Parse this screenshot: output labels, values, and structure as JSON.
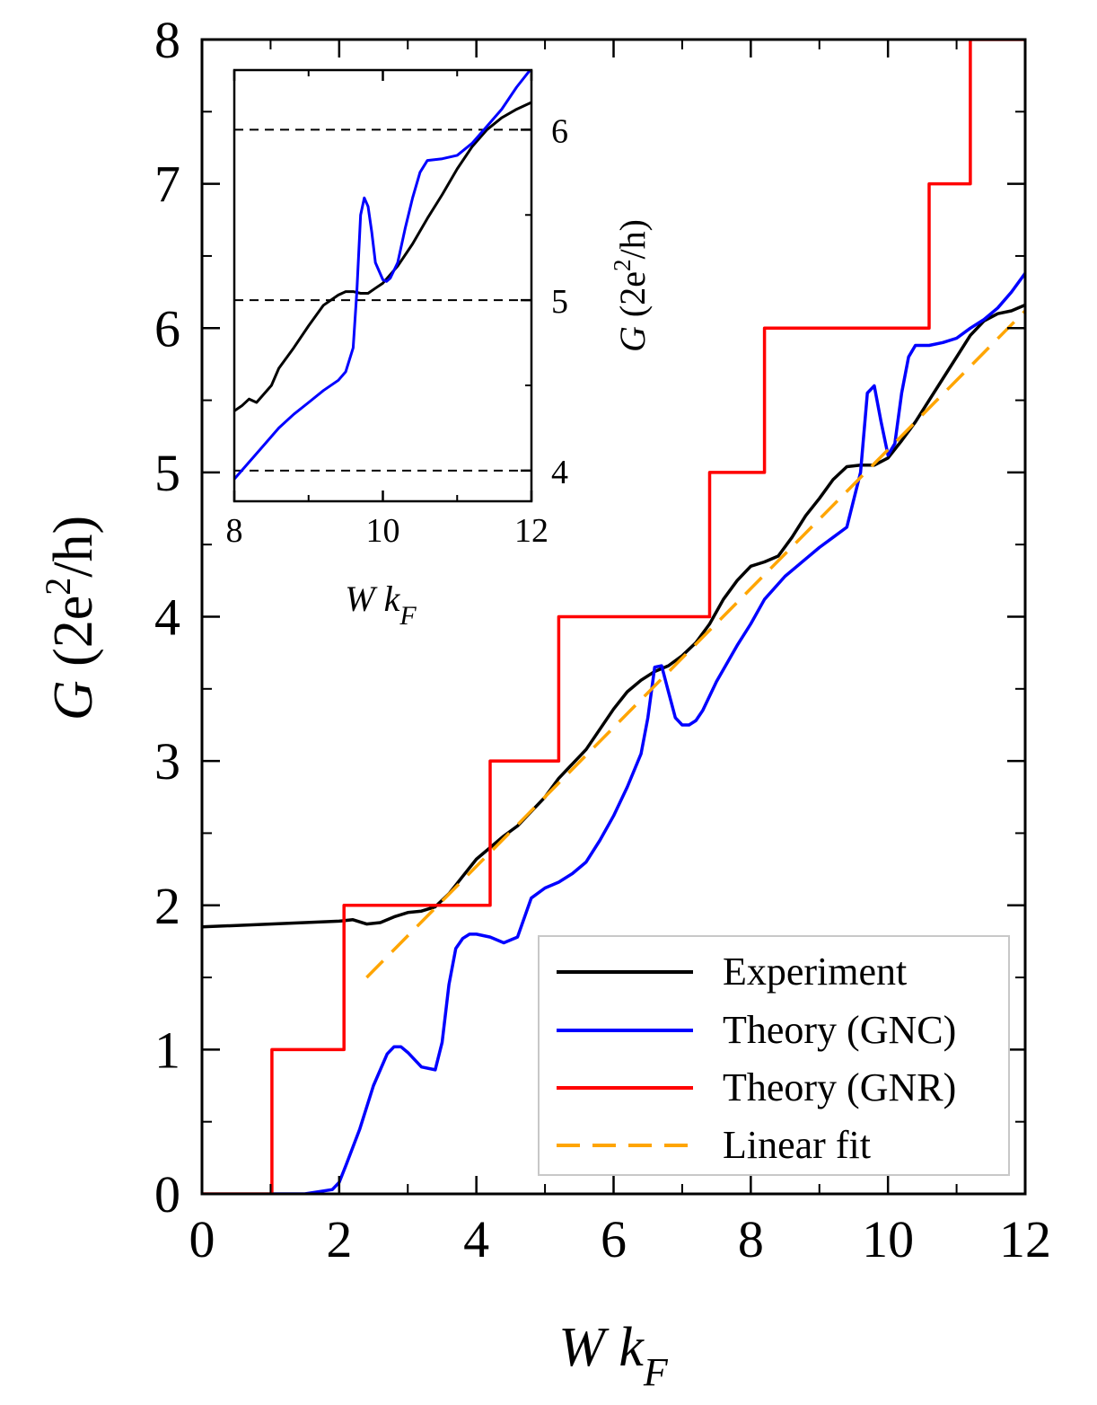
{
  "chart_data": [
    {
      "type": "line",
      "name": "main",
      "xlabel": "W k_F",
      "xlabel_parts": {
        "var": "W k",
        "sub": "F"
      },
      "ylabel": "G (2e^2/h)",
      "ylabel_parts": {
        "var": "G",
        "open": " (2e",
        "sup": "2",
        "close": "/h)"
      },
      "xlim": [
        0,
        12
      ],
      "ylim": [
        0,
        8
      ],
      "xticks": [
        0,
        2,
        4,
        6,
        8,
        10,
        12
      ],
      "yticks": [
        0,
        1,
        2,
        3,
        4,
        5,
        6,
        7,
        8
      ],
      "legend_position": "bottom-right",
      "series": [
        {
          "name": "Experiment",
          "color": "#000000",
          "style": "solid",
          "x": [
            0,
            0.5,
            1,
            1.5,
            2,
            2.2,
            2.4,
            2.6,
            2.8,
            3,
            3.2,
            3.4,
            3.6,
            3.8,
            4,
            4.2,
            4.4,
            4.6,
            4.8,
            5,
            5.2,
            5.4,
            5.6,
            5.8,
            6,
            6.2,
            6.4,
            6.6,
            6.8,
            7,
            7.2,
            7.4,
            7.6,
            7.8,
            8,
            8.2,
            8.4,
            8.6,
            8.8,
            9,
            9.2,
            9.4,
            9.6,
            9.8,
            10,
            10.2,
            10.4,
            10.6,
            10.8,
            11,
            11.2,
            11.4,
            11.6,
            11.8,
            12
          ],
          "y": [
            1.85,
            1.86,
            1.87,
            1.88,
            1.89,
            1.9,
            1.87,
            1.88,
            1.92,
            1.95,
            1.96,
            1.99,
            2.08,
            2.2,
            2.32,
            2.4,
            2.48,
            2.55,
            2.65,
            2.75,
            2.88,
            2.98,
            3.08,
            3.22,
            3.36,
            3.48,
            3.56,
            3.62,
            3.66,
            3.73,
            3.82,
            3.95,
            4.12,
            4.25,
            4.35,
            4.38,
            4.42,
            4.55,
            4.7,
            4.82,
            4.95,
            5.04,
            5.05,
            5.05,
            5.1,
            5.22,
            5.35,
            5.5,
            5.65,
            5.8,
            5.95,
            6.05,
            6.1,
            6.12,
            6.16
          ]
        },
        {
          "name": "Theory (GNC)",
          "color": "#0000ff",
          "style": "solid",
          "x": [
            1,
            1.5,
            1.9,
            2.0,
            2.1,
            2.3,
            2.5,
            2.7,
            2.8,
            2.9,
            3.0,
            3.2,
            3.4,
            3.5,
            3.6,
            3.7,
            3.8,
            3.9,
            4.0,
            4.2,
            4.4,
            4.6,
            4.8,
            5.0,
            5.2,
            5.4,
            5.6,
            5.8,
            6.0,
            6.2,
            6.4,
            6.5,
            6.6,
            6.7,
            6.8,
            6.9,
            7.0,
            7.1,
            7.2,
            7.3,
            7.5,
            7.8,
            8.0,
            8.2,
            8.5,
            8.8,
            9.0,
            9.2,
            9.4,
            9.6,
            9.7,
            9.8,
            9.9,
            10.0,
            10.1,
            10.2,
            10.3,
            10.4,
            10.6,
            10.8,
            11.0,
            11.2,
            11.4,
            11.6,
            11.8,
            12.0
          ],
          "y": [
            0,
            0,
            0.03,
            0.08,
            0.2,
            0.45,
            0.75,
            0.97,
            1.02,
            1.02,
            0.98,
            0.88,
            0.86,
            1.05,
            1.45,
            1.7,
            1.77,
            1.8,
            1.8,
            1.78,
            1.74,
            1.78,
            2.05,
            2.12,
            2.16,
            2.22,
            2.3,
            2.45,
            2.62,
            2.82,
            3.05,
            3.3,
            3.65,
            3.66,
            3.48,
            3.3,
            3.25,
            3.25,
            3.28,
            3.35,
            3.55,
            3.8,
            3.95,
            4.12,
            4.28,
            4.4,
            4.48,
            4.55,
            4.62,
            5.0,
            5.55,
            5.6,
            5.35,
            5.12,
            5.2,
            5.55,
            5.8,
            5.88,
            5.88,
            5.9,
            5.93,
            6.0,
            6.06,
            6.14,
            6.25,
            6.38
          ]
        },
        {
          "name": "Theory (GNR)",
          "color": "#ff0000",
          "style": "solid",
          "x": [
            0,
            1.02,
            1.02,
            2.07,
            2.07,
            4.2,
            4.2,
            5.2,
            5.2,
            7.4,
            7.4,
            8.2,
            8.2,
            10.6,
            10.6,
            11.2,
            11.2,
            12
          ],
          "y": [
            0,
            0,
            1,
            1,
            2,
            2,
            3,
            3,
            4,
            4,
            5,
            5,
            6,
            6,
            7,
            7,
            8,
            8
          ]
        },
        {
          "name": "Linear fit",
          "color": "#ffa500",
          "style": "dashed",
          "x": [
            2.4,
            12
          ],
          "y": [
            1.5,
            6.12
          ]
        }
      ]
    },
    {
      "type": "line",
      "name": "inset",
      "xlabel": "W k_F",
      "xlabel_parts": {
        "var": "W k",
        "sub": "F"
      },
      "ylabel": "G (2e^2/h)",
      "ylabel_parts": {
        "var": "G",
        "open": " (2e",
        "sup": "2",
        "close": "/h)"
      },
      "xlim": [
        8,
        12
      ],
      "ylim": [
        3.82,
        6.35
      ],
      "xticks": [
        8,
        10,
        12
      ],
      "yticks": [
        4,
        5,
        6
      ],
      "hlines": [
        4,
        5,
        6
      ],
      "series": [
        {
          "name": "Experiment",
          "color": "#000000",
          "x": [
            8.0,
            8.1,
            8.2,
            8.3,
            8.4,
            8.5,
            8.6,
            8.8,
            9.0,
            9.2,
            9.4,
            9.5,
            9.6,
            9.7,
            9.8,
            9.9,
            10.0,
            10.2,
            10.4,
            10.6,
            10.8,
            11.0,
            11.2,
            11.4,
            11.6,
            11.8,
            12.0
          ],
          "y": [
            4.35,
            4.38,
            4.42,
            4.4,
            4.45,
            4.5,
            4.6,
            4.72,
            4.85,
            4.97,
            5.03,
            5.05,
            5.05,
            5.04,
            5.04,
            5.07,
            5.1,
            5.2,
            5.33,
            5.48,
            5.62,
            5.77,
            5.9,
            6.0,
            6.07,
            6.12,
            6.16
          ]
        },
        {
          "name": "Theory (GNC)",
          "color": "#0000ff",
          "x": [
            8.0,
            8.2,
            8.4,
            8.6,
            8.8,
            9.0,
            9.2,
            9.4,
            9.5,
            9.6,
            9.65,
            9.7,
            9.75,
            9.8,
            9.85,
            9.9,
            10.0,
            10.05,
            10.1,
            10.2,
            10.3,
            10.4,
            10.5,
            10.6,
            10.8,
            11.0,
            11.2,
            11.4,
            11.6,
            11.8,
            12.0
          ],
          "y": [
            3.95,
            4.05,
            4.15,
            4.25,
            4.33,
            4.4,
            4.47,
            4.53,
            4.58,
            4.72,
            5.05,
            5.5,
            5.6,
            5.55,
            5.4,
            5.22,
            5.12,
            5.11,
            5.13,
            5.22,
            5.42,
            5.6,
            5.75,
            5.82,
            5.83,
            5.85,
            5.92,
            6.02,
            6.12,
            6.25,
            6.36
          ]
        }
      ]
    }
  ]
}
